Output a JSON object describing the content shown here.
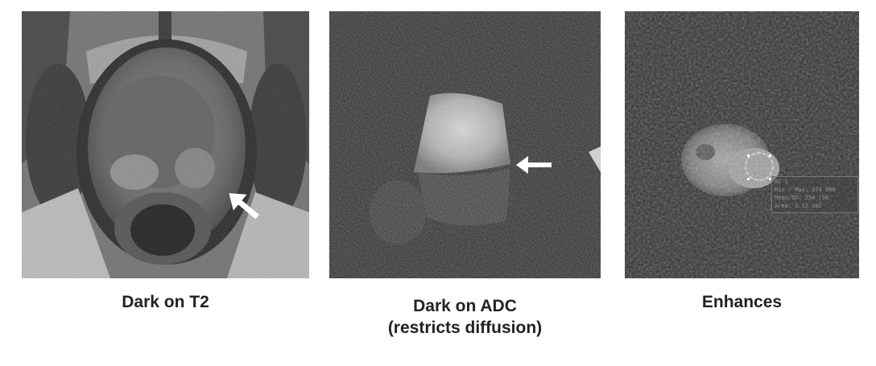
{
  "panels": [
    {
      "caption_line1": "Dark on T2",
      "caption_line2": "",
      "image": "axial-t2-prostate-mri",
      "annotation": "white-arrow"
    },
    {
      "caption_line1": "Dark on ADC",
      "caption_line2": "(restricts diffusion)",
      "image": "adc-map-prostate-mri",
      "annotation": "white-arrow"
    },
    {
      "caption_line1": "Enhances",
      "caption_line2": "",
      "image": "dce-prostate-mri",
      "annotation": "roi-circle",
      "roi_lines": [
        "AC 1",
        "Min / Max: 174 000",
        "Mean/SD: 254 (58",
        "Area: 1.12 cm2"
      ]
    }
  ]
}
